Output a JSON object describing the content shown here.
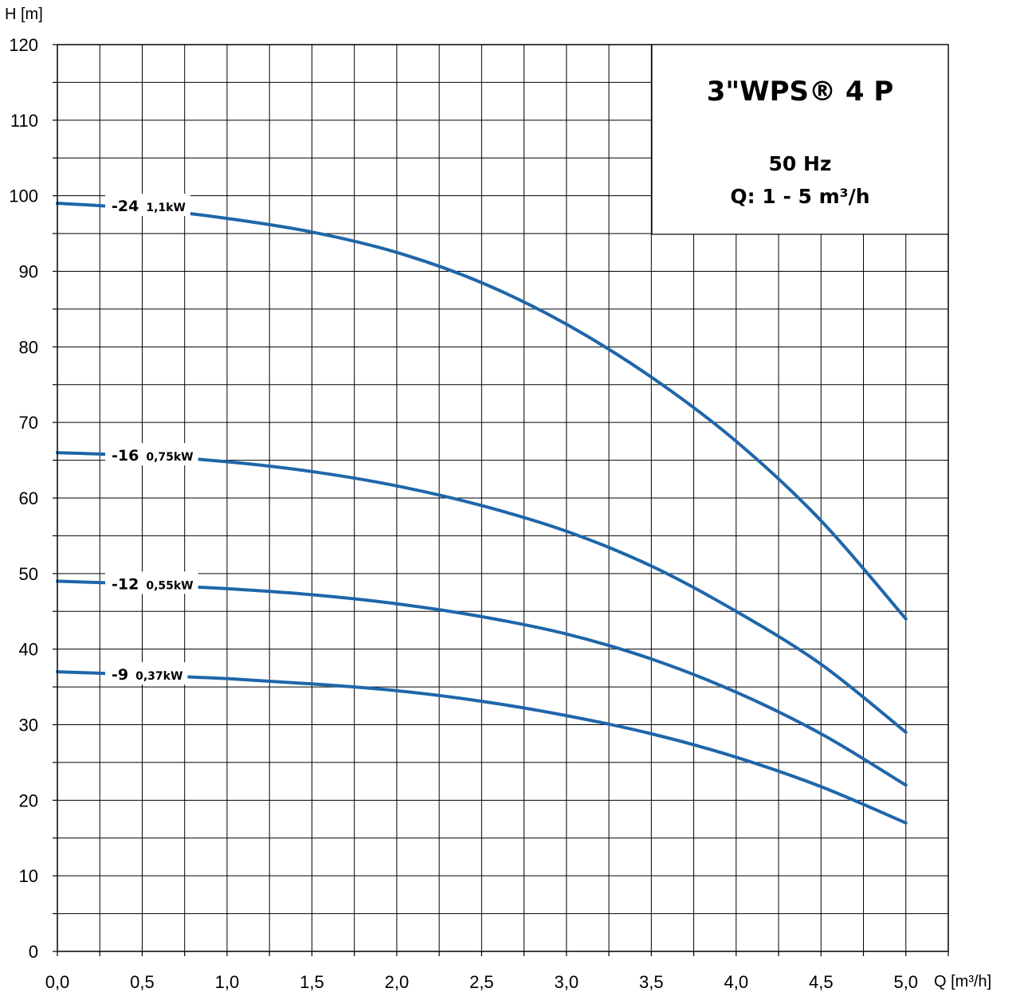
{
  "chart_data": {
    "type": "line",
    "title": "3\"WPS® 4 P",
    "subtitle_lines": [
      "50 Hz",
      "Q: 1 - 5 m³/h"
    ],
    "xlabel": "Q [m³/h]",
    "ylabel": "H [m]",
    "xlim": [
      0,
      5.25
    ],
    "ylim": [
      0,
      120
    ],
    "x_ticks": [
      0,
      0.5,
      1,
      1.5,
      2,
      2.5,
      3,
      3.5,
      4,
      4.5,
      5
    ],
    "x_tick_labels": [
      "0,0",
      "0,5",
      "1,0",
      "1,5",
      "2,0",
      "2,5",
      "3,0",
      "3,5",
      "4,0",
      "4,5",
      "5,0"
    ],
    "y_ticks": [
      0,
      10,
      20,
      30,
      40,
      50,
      60,
      70,
      80,
      90,
      100,
      110,
      120
    ],
    "y_tick_labels": [
      "0",
      "10",
      "20",
      "30",
      "40",
      "50",
      "60",
      "70",
      "80",
      "90",
      "100",
      "110",
      "120"
    ],
    "grid": true,
    "line_color": "#1f66aa",
    "series": [
      {
        "name": "-24",
        "power": "1,1kW",
        "x": [
          0,
          0.5,
          1.0,
          1.5,
          2.0,
          2.5,
          3.0,
          3.5,
          4.0,
          4.5,
          5.0
        ],
        "y": [
          99,
          98.3,
          97,
          95.2,
          92.5,
          88.5,
          83,
          76,
          67.5,
          57,
          44
        ]
      },
      {
        "name": "-16",
        "power": "0,75kW",
        "x": [
          0,
          0.5,
          1.0,
          1.5,
          2.0,
          2.5,
          3.0,
          3.5,
          4.0,
          4.5,
          5.0
        ],
        "y": [
          66,
          65.6,
          64.8,
          63.5,
          61.6,
          59,
          55.6,
          51,
          45,
          38,
          29
        ]
      },
      {
        "name": "-12",
        "power": "0,55kW",
        "x": [
          0,
          0.5,
          1.0,
          1.5,
          2.0,
          2.5,
          3.0,
          3.5,
          4.0,
          4.5,
          5.0
        ],
        "y": [
          49,
          48.6,
          48,
          47.2,
          46,
          44.3,
          42,
          38.7,
          34.3,
          28.8,
          22
        ]
      },
      {
        "name": "-9",
        "power": "0,37kW",
        "x": [
          0,
          0.5,
          1.0,
          1.5,
          2.0,
          2.5,
          3.0,
          3.5,
          4.0,
          4.5,
          5.0
        ],
        "y": [
          37,
          36.6,
          36.1,
          35.4,
          34.5,
          33.1,
          31.2,
          28.8,
          25.7,
          21.8,
          17
        ]
      }
    ]
  }
}
